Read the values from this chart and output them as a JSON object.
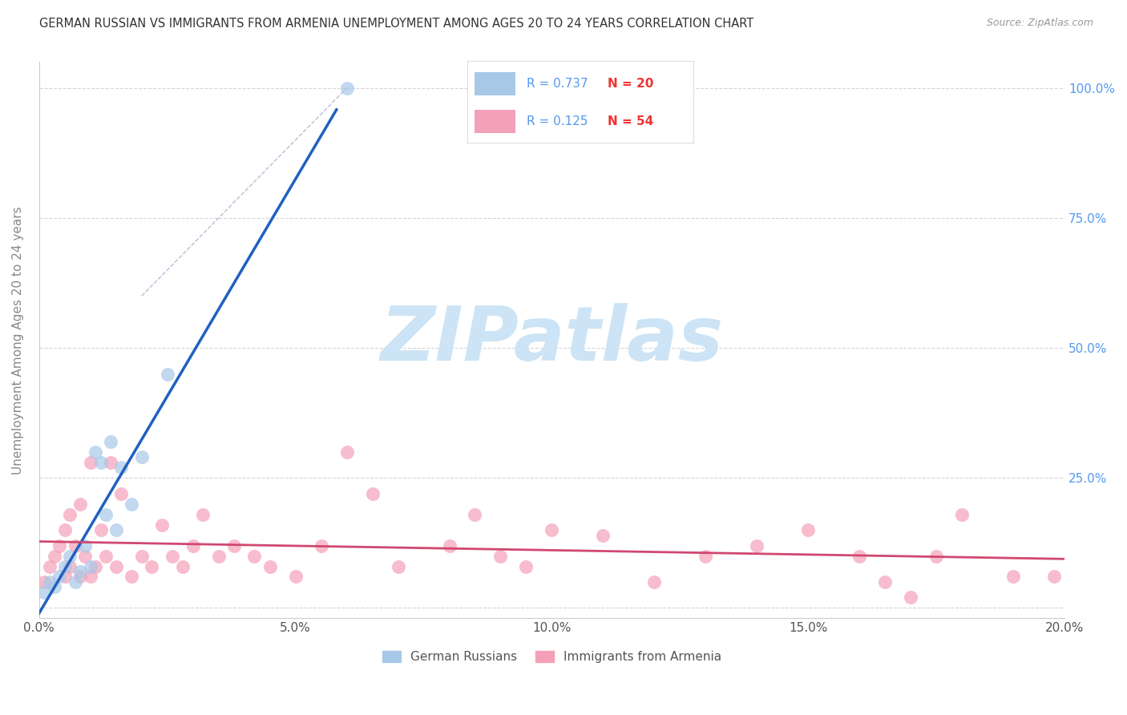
{
  "title": "GERMAN RUSSIAN VS IMMIGRANTS FROM ARMENIA UNEMPLOYMENT AMONG AGES 20 TO 24 YEARS CORRELATION CHART",
  "source": "Source: ZipAtlas.com",
  "ylabel": "Unemployment Among Ages 20 to 24 years",
  "xlim": [
    0.0,
    0.2
  ],
  "ylim": [
    -0.02,
    1.05
  ],
  "blue_R": 0.737,
  "blue_N": 20,
  "pink_R": 0.125,
  "pink_N": 54,
  "blue_label": "German Russians",
  "pink_label": "Immigrants from Armenia",
  "background_color": "#ffffff",
  "grid_color": "#cccccc",
  "watermark": "ZIPatlas",
  "watermark_color": "#cce4f5",
  "blue_scatter_color": "#a8c8e8",
  "pink_scatter_color": "#f4a0b8",
  "blue_line_color": "#2060c0",
  "pink_line_color": "#d04870",
  "tick_color": "#5599ee",
  "label_color": "#888888",
  "blue_x": [
    0.001,
    0.002,
    0.003,
    0.004,
    0.005,
    0.006,
    0.007,
    0.008,
    0.009,
    0.01,
    0.011,
    0.012,
    0.013,
    0.014,
    0.015,
    0.016,
    0.018,
    0.02,
    0.025,
    0.06
  ],
  "blue_y": [
    0.03,
    0.05,
    0.04,
    0.06,
    0.08,
    0.1,
    0.05,
    0.07,
    0.12,
    0.08,
    0.3,
    0.28,
    0.18,
    0.32,
    0.15,
    0.27,
    0.2,
    0.29,
    0.45,
    1.0
  ],
  "pink_x": [
    0.001,
    0.002,
    0.003,
    0.004,
    0.005,
    0.005,
    0.006,
    0.006,
    0.007,
    0.008,
    0.008,
    0.009,
    0.01,
    0.01,
    0.011,
    0.012,
    0.013,
    0.014,
    0.015,
    0.016,
    0.018,
    0.02,
    0.022,
    0.024,
    0.026,
    0.028,
    0.03,
    0.032,
    0.035,
    0.038,
    0.042,
    0.045,
    0.05,
    0.055,
    0.06,
    0.065,
    0.07,
    0.08,
    0.085,
    0.09,
    0.095,
    0.1,
    0.11,
    0.12,
    0.13,
    0.14,
    0.15,
    0.16,
    0.165,
    0.17,
    0.175,
    0.18,
    0.19,
    0.198
  ],
  "pink_y": [
    0.05,
    0.08,
    0.1,
    0.12,
    0.15,
    0.06,
    0.18,
    0.08,
    0.12,
    0.2,
    0.06,
    0.1,
    0.28,
    0.06,
    0.08,
    0.15,
    0.1,
    0.28,
    0.08,
    0.22,
    0.06,
    0.1,
    0.08,
    0.16,
    0.1,
    0.08,
    0.12,
    0.18,
    0.1,
    0.12,
    0.1,
    0.08,
    0.06,
    0.12,
    0.3,
    0.22,
    0.08,
    0.12,
    0.18,
    0.1,
    0.08,
    0.15,
    0.14,
    0.05,
    0.1,
    0.12,
    0.15,
    0.1,
    0.05,
    0.02,
    0.1,
    0.18,
    0.06,
    0.06
  ]
}
